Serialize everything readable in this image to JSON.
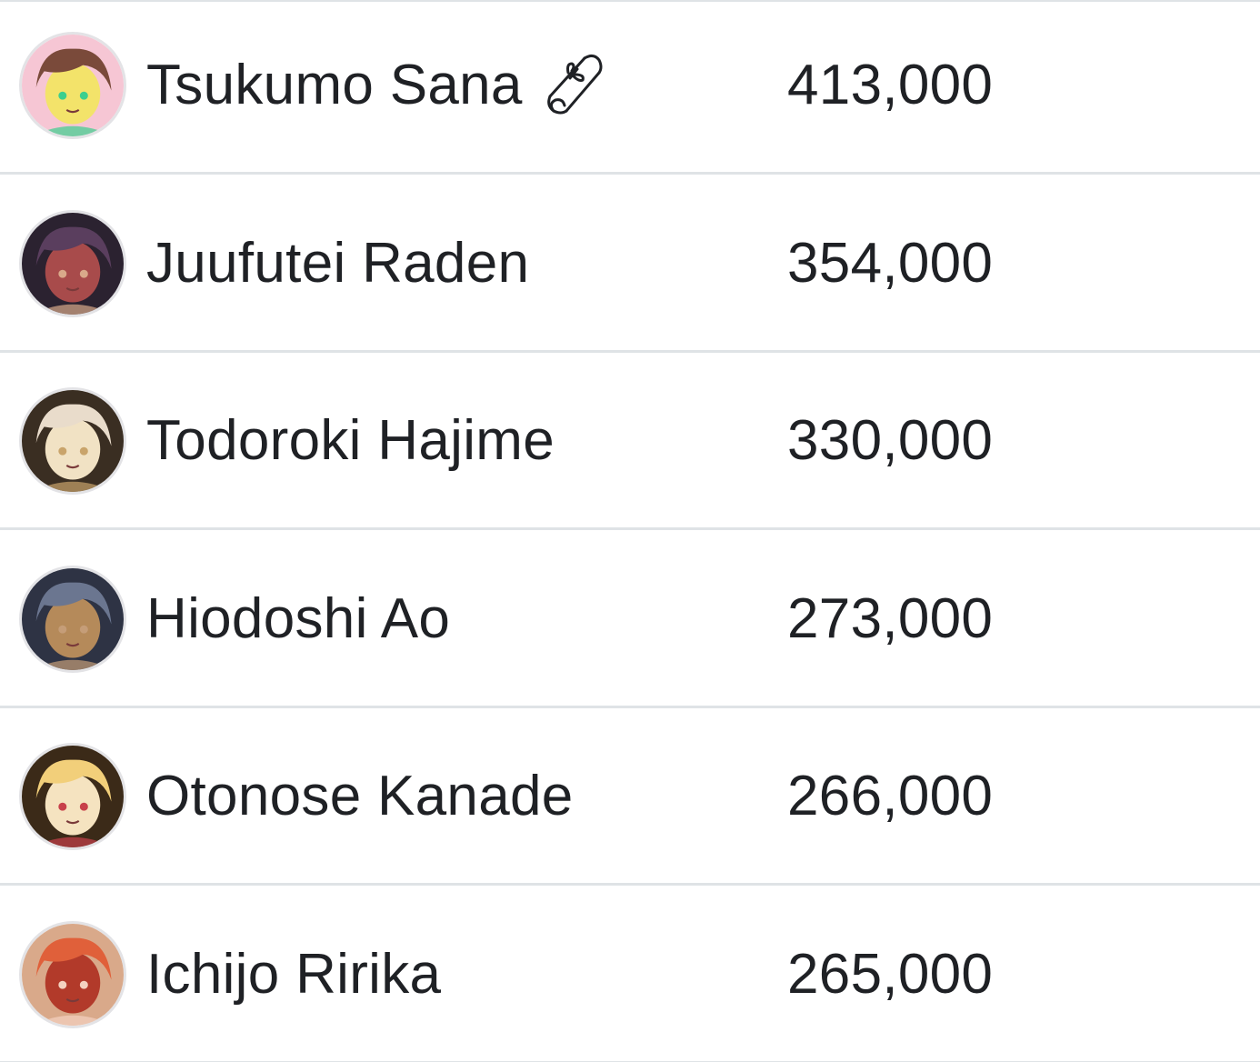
{
  "members": [
    {
      "name": "Tsukumo Sana",
      "count": "413,000",
      "has_badge": true,
      "badge_icon": "scroll-icon",
      "avatar_colors": [
        "#f6c6d4",
        "#7a4a3a",
        "#3ccf8e",
        "#f3e36a"
      ]
    },
    {
      "name": "Juufutei Raden",
      "count": "354,000",
      "has_badge": false,
      "avatar_colors": [
        "#2b2230",
        "#5a3e5e",
        "#d9a98a",
        "#a84b4b"
      ]
    },
    {
      "name": "Todoroki Hajime",
      "count": "330,000",
      "has_badge": false,
      "avatar_colors": [
        "#3a2e22",
        "#e9dccb",
        "#c9a46b",
        "#f1e2c4"
      ]
    },
    {
      "name": "Hiodoshi Ao",
      "count": "273,000",
      "has_badge": false,
      "avatar_colors": [
        "#2e3344",
        "#6b7690",
        "#c59d78",
        "#b58a5a"
      ]
    },
    {
      "name": "Otonose Kanade",
      "count": "266,000",
      "has_badge": false,
      "avatar_colors": [
        "#3b2a18",
        "#f2cf7a",
        "#c8404a",
        "#f5e3c0"
      ]
    },
    {
      "name": "Ichijo Ririka",
      "count": "265,000",
      "has_badge": false,
      "avatar_colors": [
        "#d9a98a",
        "#e0603a",
        "#f4d2c0",
        "#b23a2a"
      ]
    }
  ]
}
